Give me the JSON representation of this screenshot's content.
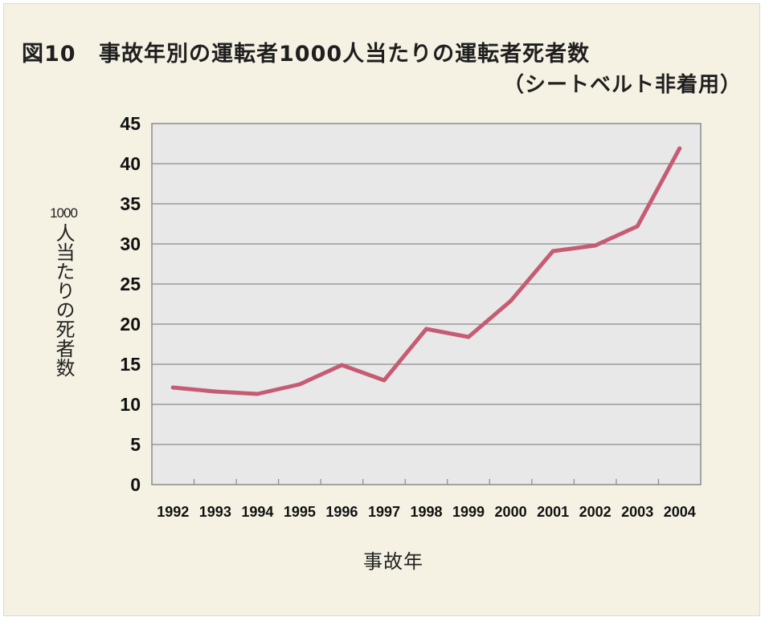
{
  "figure": {
    "number": "図10",
    "title": "事故年別の運転者1000人当たりの運転者死者数",
    "subtitle": "（シートベルト非着用）"
  },
  "chart_data": {
    "type": "line",
    "x": [
      "1992",
      "1993",
      "1994",
      "1995",
      "1996",
      "1997",
      "1998",
      "1999",
      "2000",
      "2001",
      "2002",
      "2003",
      "2004"
    ],
    "series": [
      {
        "values": [
          12.1,
          11.6,
          11.3,
          12.5,
          14.9,
          13.0,
          19.4,
          18.4,
          22.9,
          29.1,
          29.8,
          32.2,
          41.9
        ]
      }
    ],
    "xlabel": "事故年",
    "ylabel_top": "1000",
    "ylabel": "人当たりの死者数",
    "ylim": [
      0,
      45
    ],
    "yticks": [
      0,
      5,
      10,
      15,
      20,
      25,
      30,
      35,
      40,
      45
    ],
    "grid": true,
    "colors": {
      "line": "#c65b74",
      "plot_background": "#e8e8e8",
      "frame_background": "#f5f2e3",
      "grid": "#8a8a8a"
    }
  }
}
